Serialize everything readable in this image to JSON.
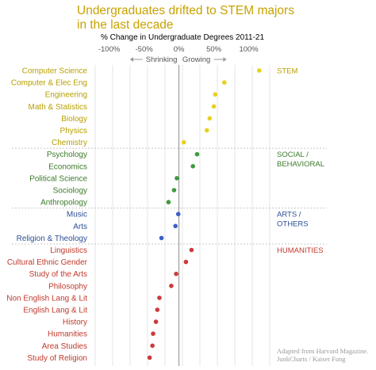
{
  "title_line1": "Undergraduates drifted to STEM majors",
  "title_line2": "in the last decade",
  "credit_line1": "Adapted from Harvard Magazine.",
  "credit_line2": "JunkCharts / Kaiser Fung",
  "colors": {
    "stem": "#b8a000",
    "stem_dot": "#e8d020",
    "social": "#3c7a2a",
    "social_dot": "#3f9a40",
    "arts": "#2c4f94",
    "arts_dot": "#3a5fc8",
    "humanities": "#c0392b",
    "humanities_dot": "#cc3b3b",
    "title": "#c8a200"
  },
  "chart_data": {
    "type": "scatter",
    "title": "Undergraduates drifted to STEM majors in the last decade",
    "xlabel": "% Change in Undergraduate Degrees 2011-21",
    "xlim": [
      -120,
      130
    ],
    "x_ticks": [
      "-100%",
      "-50%",
      "0%",
      "50%",
      "100%"
    ],
    "x_tick_values": [
      -100,
      -50,
      0,
      50,
      100
    ],
    "direction_left": "Shrinking",
    "direction_right": "Growing",
    "grid": true,
    "groups": [
      {
        "name": "STEM",
        "name_lines": [
          "STEM"
        ],
        "key": "stem"
      },
      {
        "name": "SOCIAL / BEHAVIORAL",
        "name_lines": [
          "SOCIAL /",
          "BEHAVIORAL"
        ],
        "key": "social"
      },
      {
        "name": "ARTS / OTHERS",
        "name_lines": [
          "ARTS /",
          "OTHERS"
        ],
        "key": "arts"
      },
      {
        "name": "HUMANITIES",
        "name_lines": [
          "HUMANITIES"
        ],
        "key": "humanities"
      }
    ],
    "points": [
      {
        "label": "Computer Science",
        "group": "stem",
        "value": 115
      },
      {
        "label": "Computer & Elec Eng",
        "group": "stem",
        "value": 65
      },
      {
        "label": "Engineering",
        "group": "stem",
        "value": 52
      },
      {
        "label": "Math & Statistics",
        "group": "stem",
        "value": 50
      },
      {
        "label": "Biology",
        "group": "stem",
        "value": 44
      },
      {
        "label": "Physics",
        "group": "stem",
        "value": 40
      },
      {
        "label": "Chemistry",
        "group": "stem",
        "value": 7
      },
      {
        "label": "Psychology",
        "group": "social",
        "value": 26
      },
      {
        "label": "Economics",
        "group": "social",
        "value": 20
      },
      {
        "label": "Political Science",
        "group": "social",
        "value": -3
      },
      {
        "label": "Sociology",
        "group": "social",
        "value": -7
      },
      {
        "label": "Anthropology",
        "group": "social",
        "value": -15
      },
      {
        "label": "Music",
        "group": "arts",
        "value": -1
      },
      {
        "label": "Arts",
        "group": "arts",
        "value": -5
      },
      {
        "label": "Religion & Theology",
        "group": "arts",
        "value": -25
      },
      {
        "label": "Linguistics",
        "group": "humanities",
        "value": 18
      },
      {
        "label": "Cultural Ethnic Gender",
        "group": "humanities",
        "value": 10
      },
      {
        "label": "Study of the Arts",
        "group": "humanities",
        "value": -4
      },
      {
        "label": "Philosophy",
        "group": "humanities",
        "value": -11
      },
      {
        "label": "Non English Lang & Lit",
        "group": "humanities",
        "value": -28
      },
      {
        "label": "English Lang & Lit",
        "group": "humanities",
        "value": -31
      },
      {
        "label": "History",
        "group": "humanities",
        "value": -33
      },
      {
        "label": "Humanities",
        "group": "humanities",
        "value": -37
      },
      {
        "label": "Area Studies",
        "group": "humanities",
        "value": -38
      },
      {
        "label": "Study of Religion",
        "group": "humanities",
        "value": -42
      }
    ]
  }
}
